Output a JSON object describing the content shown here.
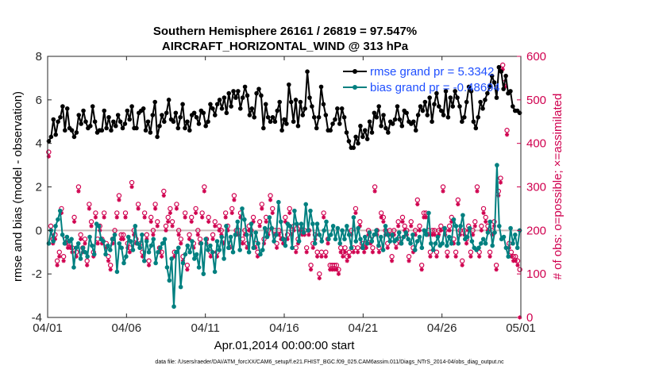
{
  "chart_data": {
    "type": "line",
    "title": "Southern Hemisphere 26161 / 26819 = 97.547%",
    "subtitle": "AIRCRAFT_HORIZONTAL_WIND @ 313 hPa",
    "xlabel": "Apr.01,2014 00:00:00 start",
    "ylabel": "rmse and bias (model - observation)",
    "ylabel_right": "# of obs: o=possible; ×=assimilated",
    "xlim": [
      0,
      30
    ],
    "ylim": [
      -4,
      8
    ],
    "ylim_right": [
      0,
      600
    ],
    "x_ticks": [
      0,
      5,
      10,
      15,
      20,
      25,
      30
    ],
    "x_tick_labels": [
      "04/01",
      "04/06",
      "04/11",
      "04/16",
      "04/21",
      "04/26",
      "05/01"
    ],
    "y_ticks": [
      -4,
      -2,
      0,
      2,
      4,
      6,
      8
    ],
    "y_tick_labels": [
      "-4",
      "-2",
      "0",
      "2",
      "4",
      "6",
      "8"
    ],
    "y_right_ticks": [
      0,
      100,
      200,
      300,
      400,
      500,
      600
    ],
    "y_right_tick_labels": [
      "0",
      "100",
      "200",
      "300",
      "400",
      "500",
      "600"
    ],
    "grid": false,
    "legend_position": "top-right",
    "series": [
      {
        "name": "rmse grand pr = 5.3342",
        "axis": "left",
        "color": "#000000",
        "values": [
          4.1,
          4.3,
          5.1,
          4.4,
          5.0,
          5.2,
          5.7,
          4.6,
          5.6,
          4.7,
          4.6,
          4.3,
          4.5,
          5.3,
          4.9,
          5.5,
          5.0,
          4.7,
          4.8,
          5.7,
          5.0,
          4.5,
          4.6,
          4.6,
          5.5,
          4.7,
          5.2,
          4.6,
          5.0,
          4.8,
          5.3,
          5.0,
          4.7,
          4.9,
          5.5,
          5.1,
          5.7,
          4.7,
          4.7,
          5.4,
          5.5,
          5.6,
          4.6,
          5.0,
          4.5,
          5.3,
          5.9,
          4.3,
          4.8,
          5.3,
          5.0,
          5.4,
          6.0,
          5.1,
          5.0,
          5.4,
          4.7,
          5.2,
          5.8,
          4.7,
          5.0,
          4.6,
          5.3,
          5.4,
          5.2,
          4.9,
          5.5,
          5.4,
          4.8,
          5.0,
          5.8,
          5.6,
          5.3,
          5.8,
          6.0,
          5.6,
          6.1,
          5.4,
          6.3,
          5.7,
          6.4,
          6.1,
          6.4,
          5.6,
          6.1,
          6.6,
          6.2,
          5.3,
          5.6,
          5.2,
          6.3,
          6.5,
          6.2,
          4.7,
          5.8,
          5.2,
          5.0,
          5.2,
          5.0,
          5.5,
          5.9,
          4.6,
          5.1,
          4.9,
          6.7,
          5.9,
          5.0,
          6.0,
          4.8,
          5.9,
          5.3,
          5.6,
          7.3,
          6.1,
          5.7,
          5.2,
          4.7,
          5.2,
          6.6,
          5.8,
          5.3,
          4.6,
          4.6,
          4.9,
          5.1,
          5.6,
          4.9,
          5.6,
          5.2,
          4.5,
          4.1,
          3.8,
          3.8,
          4.3,
          4.0,
          4.8,
          4.3,
          4.6,
          4.2,
          5.0,
          4.5,
          5.4,
          5.2,
          5.7,
          4.8,
          5.3,
          4.7,
          4.5,
          5.0,
          4.9,
          5.1,
          5.7,
          5.1,
          4.8,
          5.5,
          5.4,
          5.0,
          4.9,
          5.0,
          4.6,
          5.3,
          5.7,
          5.5,
          5.9,
          5.3,
          6.1,
          5.0,
          5.8,
          6.3,
          5.7,
          5.5,
          5.3,
          6.4,
          5.2,
          6.1,
          5.7,
          6.4,
          6.1,
          5.7,
          5.0,
          5.2,
          5.9,
          6.6,
          6.4,
          5.0,
          4.7,
          5.2,
          5.9,
          5.6,
          6.0,
          6.3,
          6.6,
          7.1,
          6.8,
          6.1,
          7.5,
          7.3,
          6.5,
          7.1,
          6.3,
          6.4,
          5.7,
          5.5,
          5.5,
          5.4
        ]
      },
      {
        "name": "bias grand pr = -0.48694",
        "axis": "left",
        "color": "#008080",
        "values": [
          -0.6,
          0.0,
          -0.5,
          0.2,
          0.5,
          0.9,
          -0.2,
          -0.6,
          -0.3,
          -0.5,
          -0.4,
          -1.7,
          -0.8,
          -0.6,
          -1.3,
          -0.8,
          -1.0,
          -1.2,
          -0.3,
          -0.7,
          -1.1,
          0.3,
          0.2,
          -0.4,
          -0.5,
          -1.1,
          -0.7,
          -0.9,
          -0.4,
          -0.2,
          -1.9,
          -0.6,
          -0.8,
          -1.5,
          -1.2,
          -0.3,
          -0.5,
          -0.9,
          0.2,
          -0.6,
          -0.8,
          -0.2,
          -1.4,
          -0.5,
          -1.0,
          -0.7,
          -0.4,
          -1.5,
          -1.0,
          -0.8,
          -0.6,
          -0.4,
          -1.7,
          -2.3,
          -1.3,
          -3.5,
          -1.0,
          -0.8,
          -2.6,
          -1.5,
          -1.1,
          -0.7,
          -1.0,
          -0.5,
          -1.3,
          -1.1,
          -1.7,
          -0.6,
          -2.0,
          -0.4,
          -0.9,
          -0.7,
          -1.0,
          -1.9,
          -0.5,
          -0.9,
          -0.3,
          -1.3,
          0.2,
          -0.8,
          -0.3,
          -1.0,
          -0.2,
          0.4,
          -0.9,
          1.0,
          0.5,
          -0.2,
          -1.0,
          0.3,
          -0.8,
          -0.1,
          -0.6,
          -1.1,
          -0.9,
          0.1,
          -0.3,
          0.6,
          0.1,
          -0.5,
          -0.2,
          1.3,
          0.4,
          -0.4,
          -0.7,
          0.3,
          0.2,
          -0.8,
          0.9,
          0.3,
          -0.5,
          0.3,
          -0.1,
          1.2,
          0.0,
          0.9,
          0.3,
          -0.6,
          0.3,
          -0.2,
          -0.5,
          0.0,
          0.4,
          -0.4,
          -0.2,
          0.2,
          -0.4,
          0.1,
          -0.6,
          0.0,
          -0.4,
          0.2,
          -0.2,
          -0.8,
          0.6,
          -0.5,
          0.1,
          -0.4,
          -0.8,
          -0.3,
          -0.6,
          -0.1,
          -0.5,
          -0.2,
          0.0,
          -0.7,
          -0.3,
          -0.9,
          0.2,
          -0.2,
          -0.5,
          -0.2,
          -0.5,
          -0.4,
          -0.1,
          -0.6,
          -0.3,
          -0.1,
          -0.4,
          -0.6,
          -0.2,
          -0.9,
          -0.5,
          -0.3,
          -0.8,
          0.0,
          -0.2,
          0.8,
          -0.6,
          -0.9,
          -0.6,
          -0.3,
          -0.7,
          -0.6,
          0.1,
          -0.7,
          -0.3,
          -0.6,
          0.5,
          0.2,
          -0.6,
          0.2,
          0.7,
          -0.4,
          -0.3,
          0.1,
          -0.5,
          -0.8,
          -0.9,
          -0.8,
          -0.6,
          -0.4,
          -0.6,
          -0.1,
          0.4,
          -0.7,
          -0.1,
          3.0,
          0.2,
          -0.4,
          -0.3,
          -0.8,
          -1.2,
          0.1,
          -0.6,
          -0.2,
          -0.8,
          0.0
        ]
      },
      {
        "name": "obs possible",
        "axis": "right",
        "marker": "o",
        "color": "#d0004f",
        "values": [
          380,
          210,
          180,
          190,
          130,
          150,
          250,
          140,
          180,
          170,
          170,
          160,
          230,
          150,
          300,
          190,
          160,
          180,
          130,
          260,
          220,
          150,
          240,
          180,
          210,
          180,
          240,
          170,
          140,
          120,
          180,
          200,
          240,
          280,
          190,
          190,
          240,
          170,
          160,
          310,
          200,
          180,
          260,
          170,
          150,
          240,
          190,
          130,
          230,
          200,
          260,
          220,
          160,
          150,
          290,
          210,
          230,
          250,
          220,
          150,
          260,
          200,
          180,
          140,
          240,
          120,
          190,
          230,
          170,
          250,
          200,
          180,
          240,
          300,
          180,
          230,
          150,
          190,
          220,
          150,
          210,
          200,
          180,
          240,
          210,
          170,
          250,
          280,
          200,
          200,
          240,
          180,
          200,
          170,
          210,
          200,
          230,
          170,
          150,
          220,
          260,
          180,
          230,
          200,
          280,
          250,
          200,
          170,
          200,
          190,
          180,
          230,
          190,
          250,
          200,
          210,
          160,
          180,
          210,
          200,
          200,
          160,
          200,
          120,
          170,
          190,
          150,
          100,
          150,
          240,
          150,
          180,
          120,
          120,
          120,
          120,
          110,
          160,
          150,
          160,
          140,
          150,
          200,
          160,
          250,
          160,
          220,
          170,
          160,
          170,
          200,
          180,
          160,
          300,
          200,
          160,
          240,
          230,
          200,
          170,
          200,
          140,
          200,
          170,
          220,
          180,
          230,
          210,
          200,
          140,
          220,
          160,
          200,
          270,
          210,
          120,
          240,
          240,
          200,
          150,
          200,
          200,
          150,
          200,
          210,
          300,
          200,
          150,
          210,
          230,
          180,
          150,
          270,
          200,
          130,
          200,
          180,
          210,
          150,
          200,
          220,
          300,
          150,
          210,
          250,
          230,
          210,
          150,
          200,
          220,
          120,
          290,
          320,
          580,
          540,
          430,
          170,
          150,
          140,
          140,
          130,
          110
        ]
      },
      {
        "name": "obs assimilated",
        "axis": "right",
        "marker": "x",
        "color": "#d0004f",
        "values": [
          370,
          200,
          170,
          180,
          120,
          140,
          240,
          130,
          170,
          160,
          160,
          150,
          220,
          140,
          290,
          180,
          150,
          170,
          120,
          250,
          210,
          140,
          230,
          170,
          200,
          170,
          230,
          160,
          130,
          110,
          170,
          190,
          230,
          270,
          180,
          180,
          230,
          160,
          150,
          300,
          190,
          170,
          250,
          160,
          140,
          230,
          180,
          120,
          220,
          190,
          250,
          210,
          150,
          140,
          280,
          200,
          220,
          240,
          210,
          140,
          250,
          190,
          170,
          130,
          230,
          110,
          180,
          220,
          160,
          240,
          190,
          170,
          230,
          290,
          170,
          220,
          140,
          180,
          210,
          140,
          200,
          190,
          170,
          230,
          200,
          160,
          240,
          270,
          190,
          190,
          230,
          170,
          190,
          160,
          200,
          190,
          220,
          160,
          140,
          210,
          250,
          170,
          220,
          190,
          270,
          240,
          190,
          160,
          190,
          180,
          170,
          220,
          180,
          240,
          190,
          200,
          150,
          170,
          200,
          190,
          190,
          150,
          190,
          110,
          160,
          180,
          140,
          90,
          140,
          230,
          140,
          170,
          110,
          110,
          110,
          110,
          100,
          150,
          140,
          150,
          130,
          140,
          190,
          150,
          240,
          150,
          210,
          160,
          150,
          160,
          190,
          170,
          150,
          290,
          190,
          150,
          230,
          220,
          190,
          160,
          190,
          130,
          190,
          160,
          210,
          170,
          220,
          200,
          190,
          130,
          210,
          150,
          190,
          260,
          200,
          110,
          230,
          230,
          190,
          140,
          190,
          190,
          140,
          190,
          200,
          290,
          190,
          140,
          200,
          220,
          170,
          140,
          260,
          190,
          120,
          190,
          170,
          200,
          140,
          190,
          210,
          290,
          140,
          200,
          240,
          220,
          200,
          140,
          190,
          210,
          110,
          280,
          310,
          570,
          530,
          420,
          160,
          140,
          130,
          130,
          120,
          0
        ]
      }
    ],
    "footer_note": "data file: /Users/raeder/DAI/ATM_forcXX/CAM6_setup/f.e21.FHIST_BGC.f09_025.CAM6assim.011/Diags_NTrS_2014-04/obs_diag_output.nc"
  }
}
